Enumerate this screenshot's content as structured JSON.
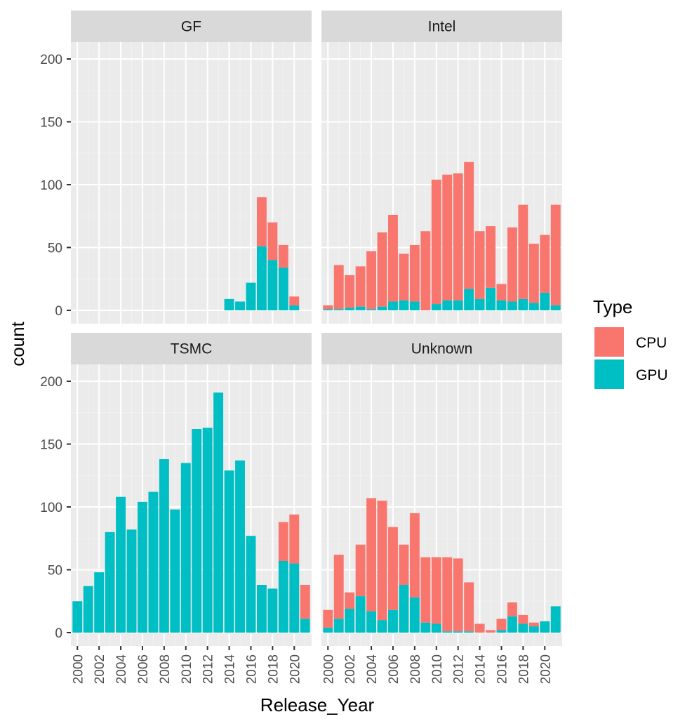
{
  "chart_data": {
    "type": "bar",
    "stacked": true,
    "faceted": true,
    "xlabel": "Release_Year",
    "ylabel": "count",
    "legend": {
      "title": "Type",
      "placement": "right",
      "items": [
        {
          "name": "CPU",
          "color": "#F8766D"
        },
        {
          "name": "GPU",
          "color": "#00BFC4"
        }
      ]
    },
    "x_categories": [
      2000,
      2001,
      2002,
      2003,
      2004,
      2005,
      2006,
      2007,
      2008,
      2009,
      2010,
      2011,
      2012,
      2013,
      2014,
      2015,
      2016,
      2017,
      2018,
      2019,
      2020,
      2021
    ],
    "x_tick_labels": [
      "2000",
      "2002",
      "2004",
      "2006",
      "2008",
      "2010",
      "2012",
      "2014",
      "2016",
      "2018",
      "2020"
    ],
    "y_tick_labels": [
      "0",
      "50",
      "100",
      "150",
      "200"
    ],
    "ylim": [
      0,
      200
    ],
    "grid": true,
    "panels": [
      {
        "name": "GF",
        "series": [
          {
            "name": "GPU",
            "values": [
              0,
              0,
              0,
              0,
              0,
              0,
              0,
              0,
              0,
              0,
              0,
              0,
              0,
              0,
              9,
              7,
              22,
              51,
              40,
              34,
              4,
              0
            ]
          },
          {
            "name": "CPU",
            "values": [
              0,
              0,
              0,
              0,
              0,
              0,
              0,
              0,
              0,
              0,
              0,
              0,
              0,
              0,
              0,
              0,
              0,
              39,
              30,
              18,
              7,
              0
            ]
          }
        ]
      },
      {
        "name": "Intel",
        "series": [
          {
            "name": "GPU",
            "values": [
              1,
              1,
              2,
              3,
              1,
              3,
              7,
              8,
              7,
              0,
              5,
              8,
              8,
              17,
              9,
              18,
              8,
              7,
              9,
              6,
              14,
              4
            ]
          },
          {
            "name": "CPU",
            "values": [
              3,
              35,
              26,
              32,
              46,
              59,
              69,
              37,
              45,
              63,
              99,
              100,
              101,
              101,
              54,
              49,
              13,
              59,
              75,
              47,
              46,
              80
            ]
          }
        ]
      },
      {
        "name": "TSMC",
        "series": [
          {
            "name": "GPU",
            "values": [
              25,
              37,
              48,
              80,
              108,
              82,
              104,
              112,
              138,
              98,
              135,
              162,
              163,
              191,
              129,
              137,
              77,
              38,
              35,
              57,
              55,
              11
            ]
          },
          {
            "name": "CPU",
            "values": [
              0,
              0,
              0,
              0,
              0,
              0,
              0,
              0,
              0,
              0,
              0,
              0,
              0,
              0,
              0,
              0,
              0,
              0,
              0,
              31,
              39,
              27
            ]
          }
        ]
      },
      {
        "name": "Unknown",
        "series": [
          {
            "name": "GPU",
            "values": [
              4,
              11,
              19,
              29,
              17,
              10,
              18,
              38,
              28,
              8,
              7,
              1,
              1,
              1,
              0,
              0,
              2,
              13,
              7,
              5,
              9,
              21
            ]
          },
          {
            "name": "CPU",
            "values": [
              14,
              51,
              13,
              41,
              90,
              95,
              66,
              32,
              67,
              52,
              53,
              59,
              58,
              39,
              7,
              2,
              9,
              11,
              7,
              3,
              0,
              0
            ]
          }
        ]
      }
    ]
  }
}
